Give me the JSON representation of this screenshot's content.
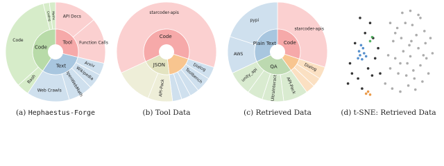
{
  "chart_data": [
    {
      "type": "sunburst",
      "caption_label": "(a)",
      "caption": "Hephaestus-Forge",
      "groups": [
        {
          "name": "Tool",
          "color": "#f6a9a9",
          "outer_color": "#fbd0d0",
          "children": [
            {
              "name": "API Docs",
              "value": 14
            },
            {
              "name": "Function Calls",
              "value": 15
            }
          ]
        },
        {
          "name": "Text",
          "color": "#a8c6df",
          "outer_color": "#cfe0ee",
          "children": [
            {
              "name": "Arxiv",
              "value": 4
            },
            {
              "name": "Wikipedia",
              "value": 5
            },
            {
              "name": "OpenWebMath",
              "value": 8
            },
            {
              "name": "Web Crawls",
              "value": 14
            }
          ]
        },
        {
          "name": "Code",
          "color": "#b8dba8",
          "outer_color": "#d6ecc9",
          "children": [
            {
              "name": "Bash",
              "value": 4
            },
            {
              "name": "Code",
              "value": 33
            },
            {
              "name": "Coding",
              "value": 2
            },
            {
              "name": "Maths",
              "value": 2
            }
          ]
        }
      ]
    },
    {
      "type": "sunburst",
      "caption_label": "(b)",
      "caption": "Tool Data",
      "groups": [
        {
          "name": "Code",
          "color": "#f6a9a9",
          "outer_color": "#fbd0d0",
          "children": [
            {
              "name": "starcoder-apis",
              "value": 62
            }
          ]
        },
        {
          "name": null,
          "color": "#f8c58f",
          "outer_color": "#cfe0ee",
          "children": [
            {
              "name": "Dialog",
              "value": 4
            },
            {
              "name": "Toolbench",
              "value": 5
            },
            {
              "name": null,
              "value": 3
            },
            {
              "name": null,
              "value": 3
            },
            {
              "name": null,
              "value": 3
            }
          ]
        },
        {
          "name": "JSON",
          "color": "#e3e3c0",
          "outer_color": "#eeeed8",
          "children": [
            {
              "name": "API-Pack",
              "value": 8
            },
            {
              "name": null,
              "value": 12
            }
          ]
        }
      ]
    },
    {
      "type": "sunburst",
      "caption_label": "(c)",
      "caption": "Retrieved Data",
      "groups": [
        {
          "name": "Code",
          "color": "#f6a9a9",
          "outer_color": "#fbd0d0",
          "children": [
            {
              "name": "starcoder-apis",
              "value": 30
            }
          ]
        },
        {
          "name": null,
          "color": "#f8c58f",
          "outer_color": "#fbe0c2",
          "children": [
            {
              "name": "Dialog",
              "value": 4
            },
            {
              "name": null,
              "value": 3
            },
            {
              "name": null,
              "value": 3
            }
          ]
        },
        {
          "name": "QA",
          "color": "#bcd9b0",
          "outer_color": "#d9ebd0",
          "children": [
            {
              "name": "API-Pack",
              "value": 8
            },
            {
              "name": "UltraInteract",
              "value": 7
            },
            {
              "name": null,
              "value": 5
            },
            {
              "name": "unity_api",
              "value": 8
            }
          ]
        },
        {
          "name": "Plain Text",
          "color": "#a8c6df",
          "outer_color": "#cfe0ee",
          "children": [
            {
              "name": "AWS",
              "value": 12
            },
            {
              "name": "pypi",
              "value": 20
            }
          ]
        }
      ]
    },
    {
      "type": "scatter",
      "caption_label": "(d)",
      "caption": "t-SNE: Retrieved Data",
      "xlim": [
        0,
        100
      ],
      "ylim": [
        0,
        100
      ],
      "series": [
        {
          "color": "#9e9e9e",
          "x": [
            45,
            52,
            60,
            68,
            75,
            82,
            88,
            50,
            58,
            66,
            73,
            80,
            86,
            92,
            48,
            55,
            63,
            70,
            78,
            85,
            53,
            61,
            69,
            76,
            84,
            90,
            57,
            65,
            72,
            80,
            62,
            70,
            78,
            55,
            67,
            74,
            60,
            71,
            50,
            83
          ],
          "y": [
            20,
            15,
            12,
            18,
            14,
            22,
            30,
            35,
            30,
            28,
            33,
            38,
            45,
            50,
            48,
            45,
            52,
            47,
            55,
            60,
            62,
            65,
            58,
            68,
            72,
            65,
            75,
            80,
            78,
            85,
            90,
            92,
            88,
            70,
            40,
            25,
            40,
            62,
            80,
            48
          ]
        },
        {
          "color": "#111111",
          "x": [
            8,
            12,
            18,
            22,
            28,
            32,
            35,
            15,
            25,
            38,
            30,
            20,
            10,
            33,
            40
          ],
          "y": [
            20,
            30,
            25,
            15,
            35,
            28,
            45,
            60,
            70,
            55,
            80,
            85,
            40,
            65,
            30
          ]
        },
        {
          "color": "#3a7dc4",
          "x": [
            18,
            20,
            22,
            24,
            19,
            23,
            26,
            21
          ],
          "y": [
            45,
            48,
            44,
            50,
            52,
            55,
            47,
            58
          ]
        },
        {
          "color": "#e8892b",
          "x": [
            26,
            28,
            30
          ],
          "y": [
            10,
            12,
            9
          ]
        },
        {
          "color": "#3aa34a",
          "x": [
            30,
            32
          ],
          "y": [
            62,
            66
          ]
        }
      ]
    }
  ]
}
